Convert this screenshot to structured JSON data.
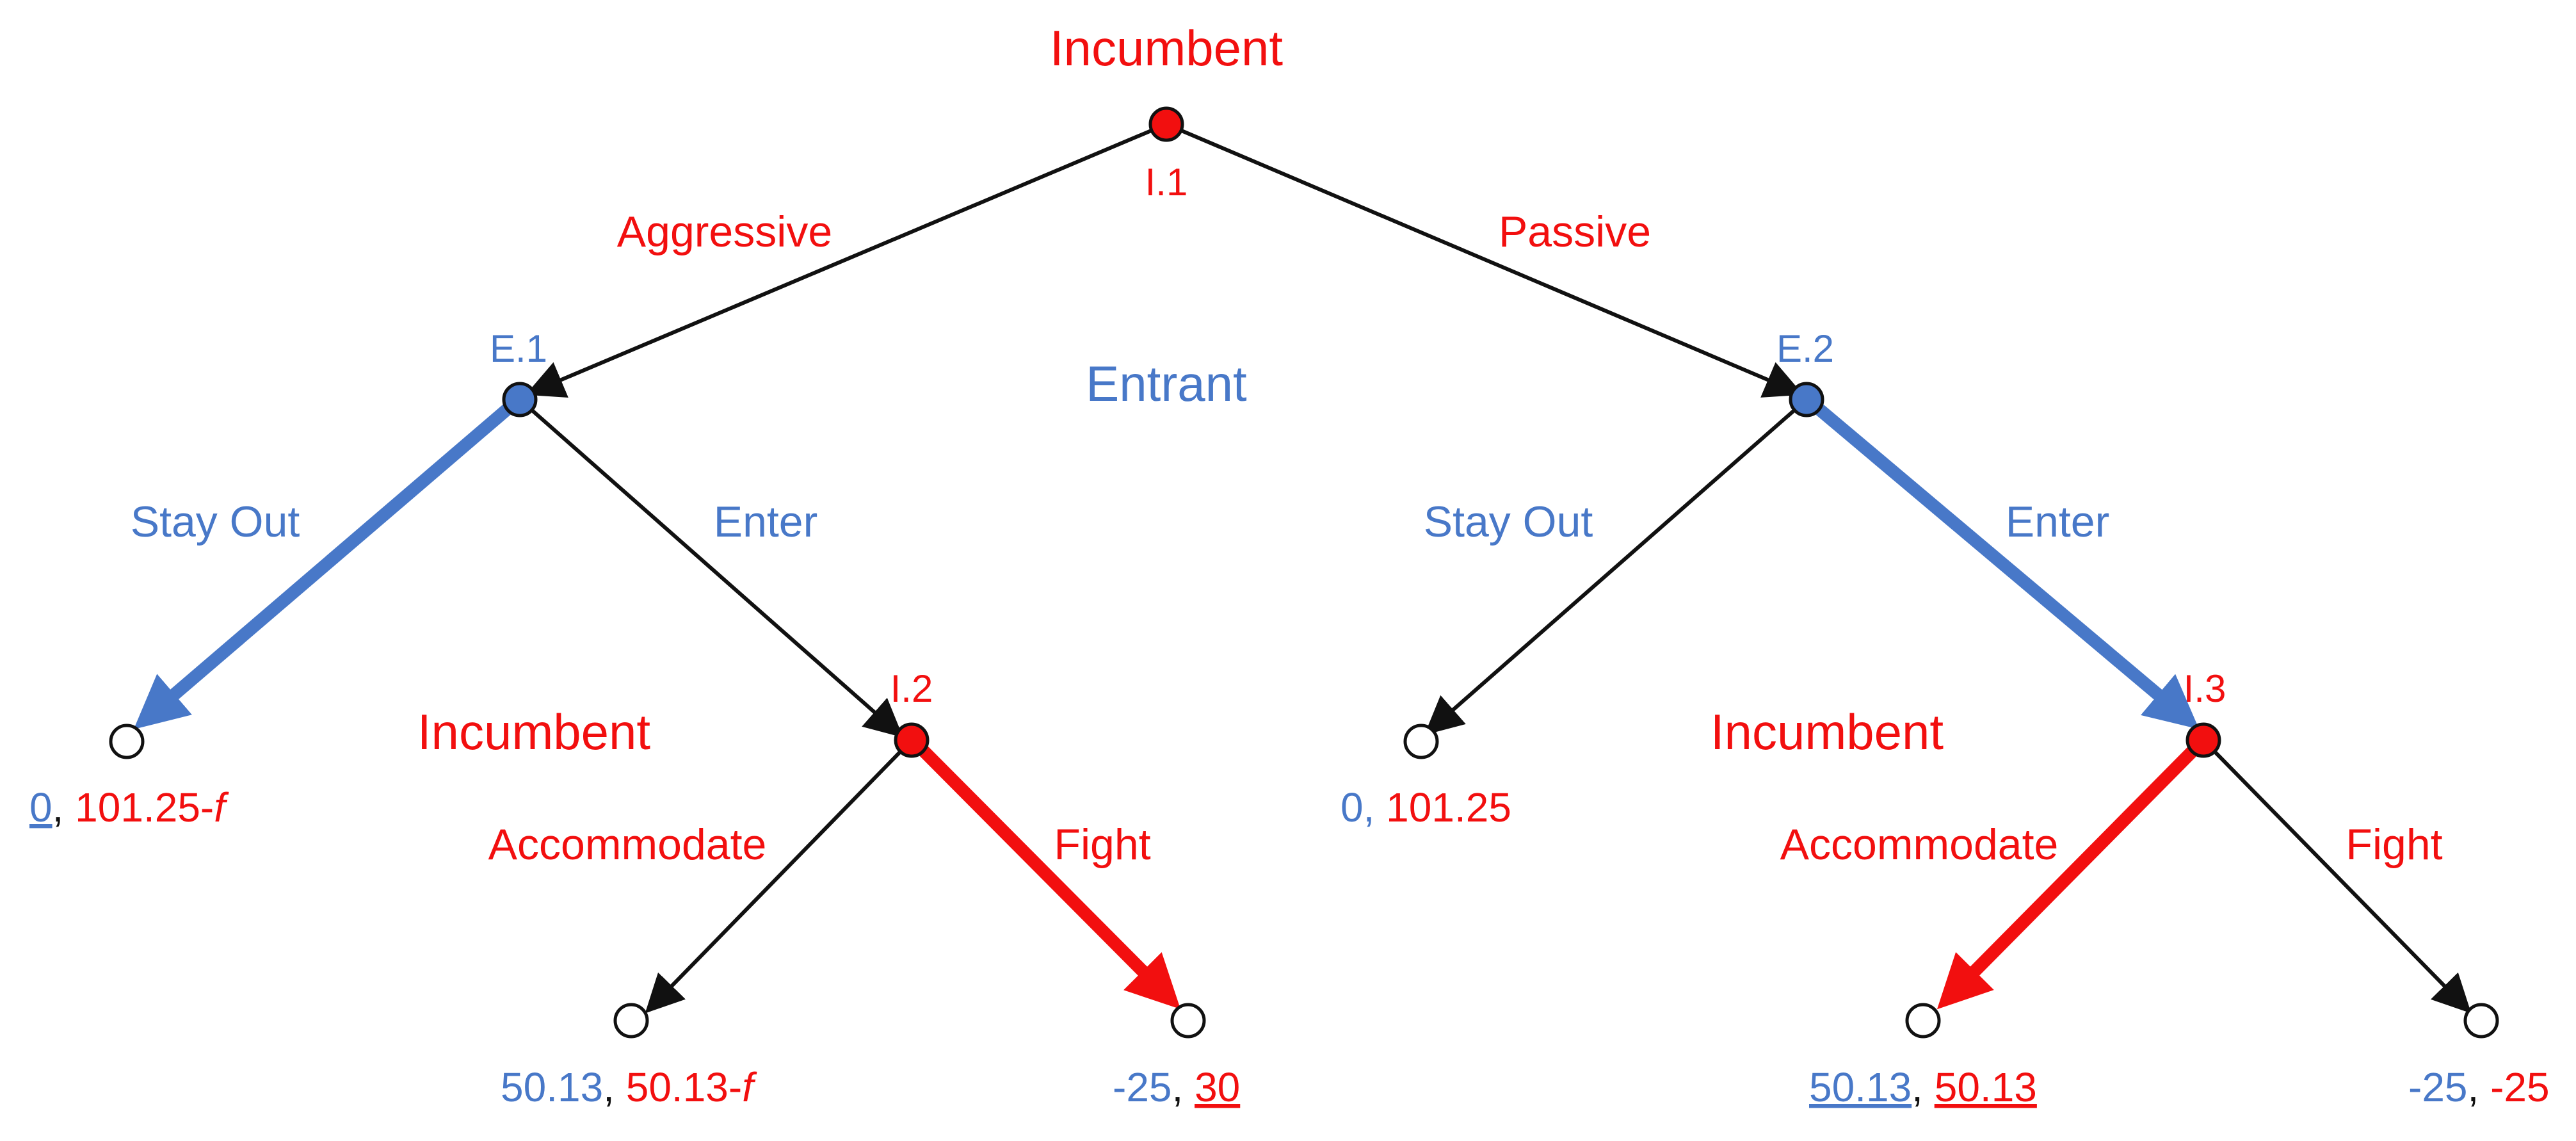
{
  "colors": {
    "incumbent": "#f20f0f",
    "entrant": "#4878c8",
    "edge": "#111111",
    "terminal_fill": "#ffffff"
  },
  "players": {
    "incumbent_top": "Incumbent",
    "entrant": "Entrant",
    "incumbent_left": "Incumbent",
    "incumbent_right": "Incumbent"
  },
  "nodes": {
    "i1": "I.1",
    "e1": "E.1",
    "e2": "E.2",
    "i2": "I.2",
    "i3": "I.3"
  },
  "actions": {
    "aggressive": "Aggressive",
    "passive": "Passive",
    "stay_out_1": "Stay Out",
    "enter_1": "Enter",
    "stay_out_2": "Stay Out",
    "enter_2": "Enter",
    "accommodate_1": "Accommodate",
    "fight_1": "Fight",
    "accommodate_2": "Accommodate",
    "fight_2": "Fight"
  },
  "payoffs": {
    "t1": {
      "entrant": "0",
      "sep": ", ",
      "incumbent": "101.25-",
      "f": "f"
    },
    "t2": {
      "entrant": "0, ",
      "incumbent": "101.25"
    },
    "t3": {
      "entrant": "50.13",
      "sep": ", ",
      "incumbent": "50.13-",
      "f": "f"
    },
    "t4": {
      "entrant": "-25",
      "sep": ", ",
      "incumbent": "30"
    },
    "t5": {
      "entrant": "50.13",
      "sep": ", ",
      "incumbent": "50.13"
    },
    "t6": {
      "entrant": "-25",
      "sep": ", ",
      "incumbent": "-25"
    }
  }
}
